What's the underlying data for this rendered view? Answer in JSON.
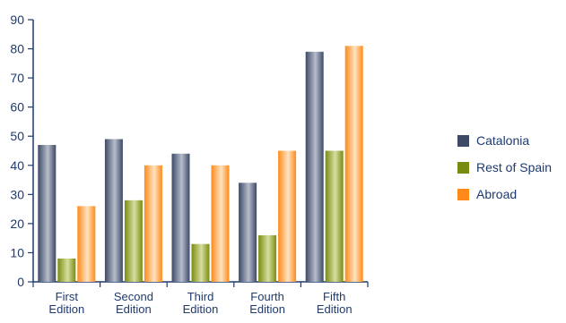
{
  "chart_data": {
    "type": "bar",
    "title": "",
    "xlabel": "",
    "ylabel": "",
    "ylim": [
      0,
      90
    ],
    "yticks": [
      0,
      10,
      20,
      30,
      40,
      50,
      60,
      70,
      80,
      90
    ],
    "categories": [
      [
        "First",
        "Edition"
      ],
      [
        "Second",
        "Edition"
      ],
      [
        "Third",
        "Edition"
      ],
      [
        "Fourth",
        "Edition"
      ],
      [
        "Fifth",
        "Edition"
      ]
    ],
    "series": [
      {
        "name": "Catalonia",
        "color": "#3d4a66",
        "values": [
          47,
          49,
          44,
          34,
          79
        ]
      },
      {
        "name": "Rest of Spain",
        "color": "#7a8c10",
        "values": [
          8,
          28,
          13,
          16,
          45
        ]
      },
      {
        "name": "Abroad",
        "color": "#ff8a1a",
        "values": [
          26,
          40,
          40,
          45,
          81
        ]
      }
    ],
    "grid": false,
    "legend_position": "right"
  }
}
